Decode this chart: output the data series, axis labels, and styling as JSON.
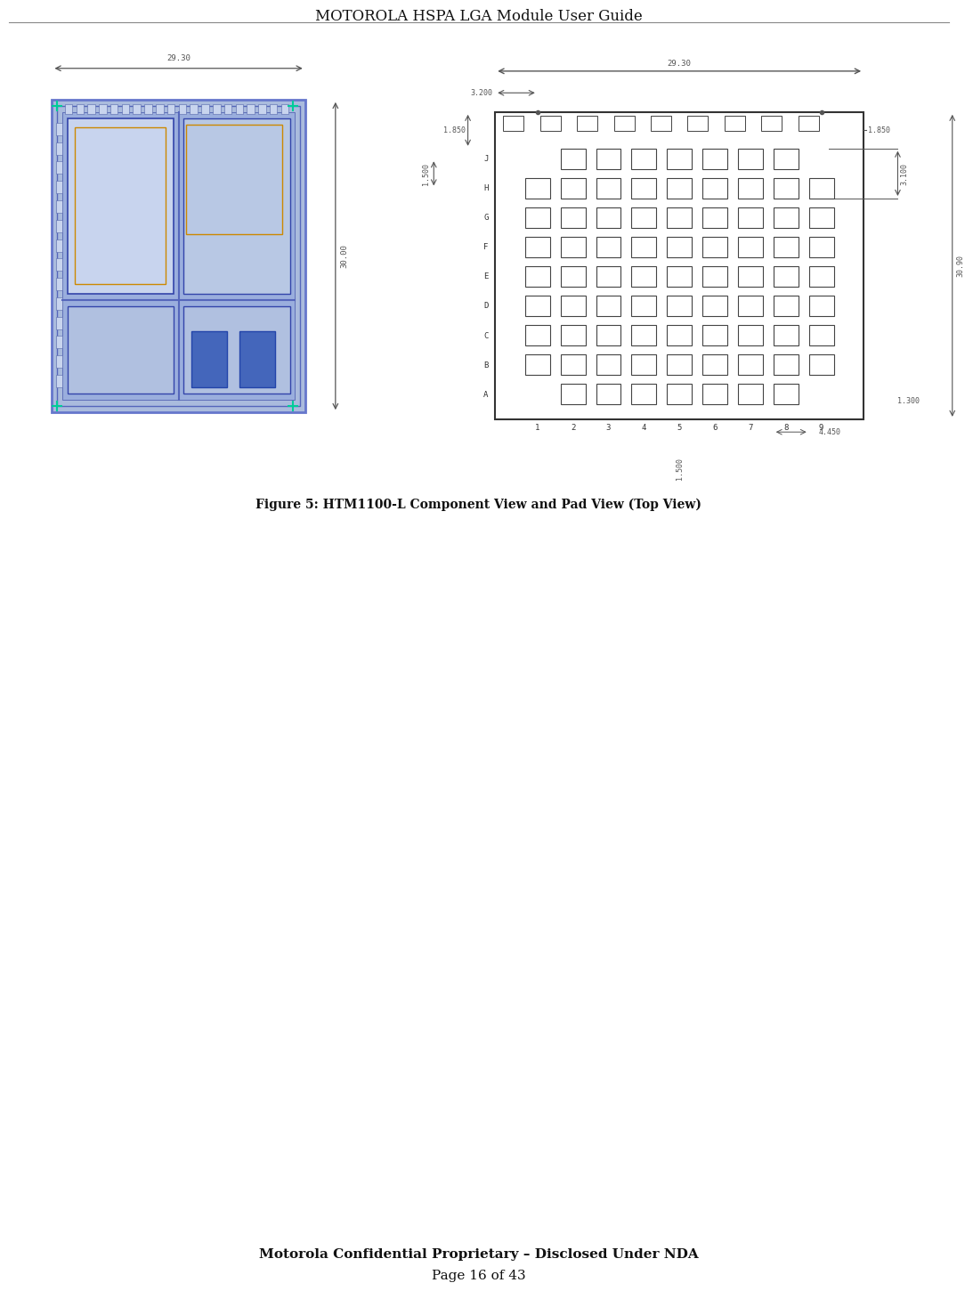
{
  "title": "MOTOROLA HSPA LGA Module User Guide",
  "figure_caption": "Figure 5: HTM1100-L Component View and Pad View (Top View)",
  "footer_bold": "Motorola Confidential Proprietary – Disclosed Under NDA",
  "footer_normal": "Page 16 of 43",
  "bg_color": "#ffffff",
  "left_dim_w": "29.30",
  "left_dim_h": "30.00",
  "right_annotations": {
    "top_w": "29.30",
    "v3200": "3.200",
    "v1850_left": "1.850",
    "v1850_right": "1.850",
    "v1500": "1.500",
    "v3100": "3.100",
    "v30": "30.90",
    "v4450": "4.450",
    "v1300": "1.300",
    "v1500b": "1.500"
  },
  "row_labels": [
    "J",
    "H",
    "G",
    "F",
    "E",
    "D",
    "C",
    "B",
    "A"
  ],
  "col_labels": [
    "1",
    "2",
    "3",
    "4",
    "5",
    "6",
    "7",
    "8",
    "9"
  ],
  "pcb_outer_color": "#6677cc",
  "pcb_inner_bg": "#8899dd",
  "pcb_border_color": "#4455aa",
  "corner_color": "#00cc99",
  "pad_fill": "#ffffff",
  "pad_edge": "#444444",
  "dim_color": "#555555",
  "dim_font": "monospace",
  "dim_fontsize": 6.5
}
